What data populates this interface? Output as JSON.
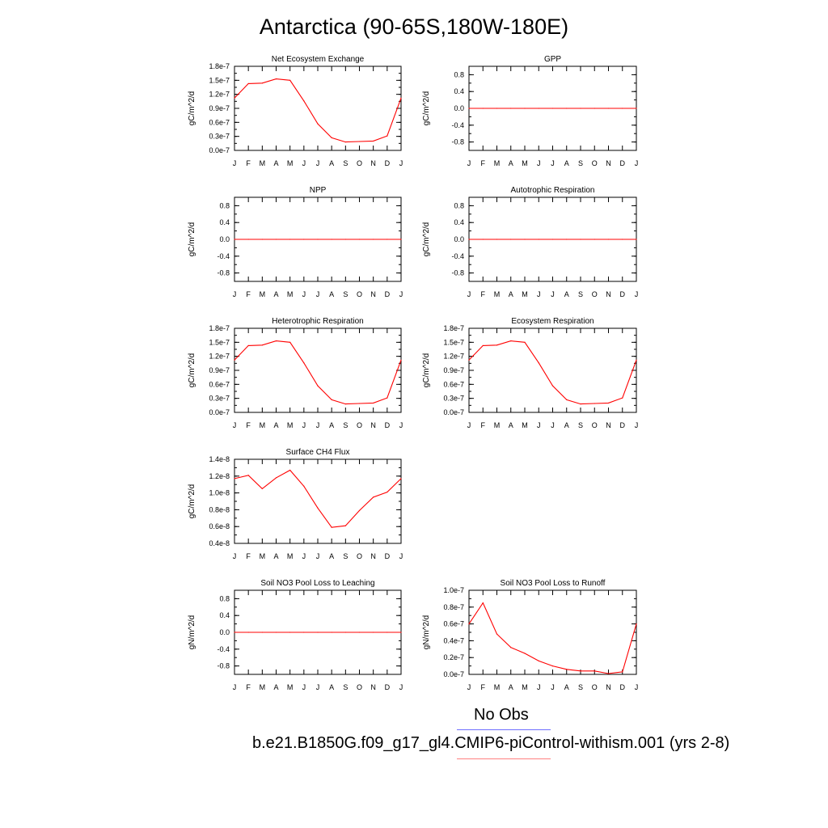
{
  "title": "Antarctica (90-65S,180W-180E)",
  "month_labels": [
    "J",
    "F",
    "M",
    "A",
    "M",
    "J",
    "J",
    "A",
    "S",
    "O",
    "N",
    "D",
    "J"
  ],
  "legend": [
    {
      "label": "No Obs",
      "color": "#0000ff"
    },
    {
      "label": "b.e21.B1850G.f09_g17_gl4.CMIP6-piControl-withism.001 (yrs 2-8)",
      "color": "#ff0000"
    }
  ],
  "colors": {
    "series": "#ff0000",
    "zero_line": "#000000"
  },
  "chart_data": [
    {
      "type": "line",
      "title": "Net Ecosystem Exchange",
      "ylabel": "gC/m^2/d",
      "yticks": [
        "1.8e-7",
        "1.5e-7",
        "1.2e-7",
        "0.9e-7",
        "0.6e-7",
        "0.3e-7",
        "0.0e-7"
      ],
      "ylim": [
        0.0,
        1.8e-07
      ],
      "values": [
        1.12e-07,
        1.43e-07,
        1.44e-07,
        1.53e-07,
        1.5e-07,
        1.06e-07,
        5.7e-08,
        2.7e-08,
        1.8e-08,
        1.9e-08,
        2e-08,
        3.1e-08,
        1.12e-07
      ]
    },
    {
      "type": "line",
      "title": "GPP",
      "ylabel": "gC/m^2/d",
      "yticks": [
        "0.8",
        "0.4",
        "0.0",
        "-0.4",
        "-0.8"
      ],
      "ylim": [
        -1.0,
        1.0
      ],
      "values": [
        0,
        0,
        0,
        0,
        0,
        0,
        0,
        0,
        0,
        0,
        0,
        0,
        0
      ]
    },
    {
      "type": "line",
      "title": "NPP",
      "ylabel": "gC/m^2/d",
      "yticks": [
        "0.8",
        "0.4",
        "0.0",
        "-0.4",
        "-0.8"
      ],
      "ylim": [
        -1.0,
        1.0
      ],
      "values": [
        0,
        0,
        0,
        0,
        0,
        0,
        0,
        0,
        0,
        0,
        0,
        0,
        0
      ]
    },
    {
      "type": "line",
      "title": "Autotrophic Respiration",
      "ylabel": "gC/m^2/d",
      "yticks": [
        "0.8",
        "0.4",
        "0.0",
        "-0.4",
        "-0.8"
      ],
      "ylim": [
        -1.0,
        1.0
      ],
      "values": [
        0,
        0,
        0,
        0,
        0,
        0,
        0,
        0,
        0,
        0,
        0,
        0,
        0
      ]
    },
    {
      "type": "line",
      "title": "Heterotrophic Respiration",
      "ylabel": "gC/m^2/d",
      "yticks": [
        "1.8e-7",
        "1.5e-7",
        "1.2e-7",
        "0.9e-7",
        "0.6e-7",
        "0.3e-7",
        "0.0e-7"
      ],
      "ylim": [
        0.0,
        1.8e-07
      ],
      "values": [
        1.12e-07,
        1.43e-07,
        1.44e-07,
        1.53e-07,
        1.5e-07,
        1.06e-07,
        5.7e-08,
        2.7e-08,
        1.8e-08,
        1.9e-08,
        2e-08,
        3.1e-08,
        1.12e-07
      ]
    },
    {
      "type": "line",
      "title": "Ecosystem Respiration",
      "ylabel": "gC/m^2/d",
      "yticks": [
        "1.8e-7",
        "1.5e-7",
        "1.2e-7",
        "0.9e-7",
        "0.6e-7",
        "0.3e-7",
        "0.0e-7"
      ],
      "ylim": [
        0.0,
        1.8e-07
      ],
      "values": [
        1.12e-07,
        1.43e-07,
        1.44e-07,
        1.53e-07,
        1.5e-07,
        1.06e-07,
        5.7e-08,
        2.7e-08,
        1.8e-08,
        1.9e-08,
        2e-08,
        3.1e-08,
        1.12e-07
      ]
    },
    {
      "type": "line",
      "title": "Surface CH4 Flux",
      "ylabel": "gC/m^2/d",
      "yticks": [
        "1.4e-8",
        "1.2e-8",
        "1.0e-8",
        "0.8e-8",
        "0.6e-8",
        "0.4e-8"
      ],
      "ylim": [
        4e-09,
        1.4e-08
      ],
      "values": [
        1.17e-08,
        1.21e-08,
        1.05e-08,
        1.18e-08,
        1.27e-08,
        1.08e-08,
        8.2e-09,
        5.9e-09,
        6.1e-09,
        7.9e-09,
        9.5e-09,
        1.01e-08,
        1.17e-08
      ]
    },
    {
      "type": "line",
      "title": "Soil NO3 Pool Loss to Leaching",
      "ylabel": "gN/m^2/d",
      "yticks": [
        "0.8",
        "0.4",
        "0.0",
        "-0.4",
        "-0.8"
      ],
      "ylim": [
        -1.0,
        1.0
      ],
      "values": [
        0,
        0,
        0,
        0,
        0,
        0,
        0,
        0,
        0,
        0,
        0,
        0,
        0
      ]
    },
    {
      "type": "line",
      "title": "Soil NO3 Pool Loss to Runoff",
      "ylabel": "gN/m^2/d",
      "yticks": [
        "1.0e-7",
        "0.8e-7",
        "0.6e-7",
        "0.4e-7",
        "0.2e-7",
        "0.0e-7"
      ],
      "ylim": [
        0.0,
        1e-07
      ],
      "values": [
        6e-08,
        8.5e-08,
        4.8e-08,
        3.2e-08,
        2.5e-08,
        1.6e-08,
        1e-08,
        6e-09,
        4e-09,
        4e-09,
        1e-09,
        3e-09,
        6e-08
      ]
    }
  ]
}
